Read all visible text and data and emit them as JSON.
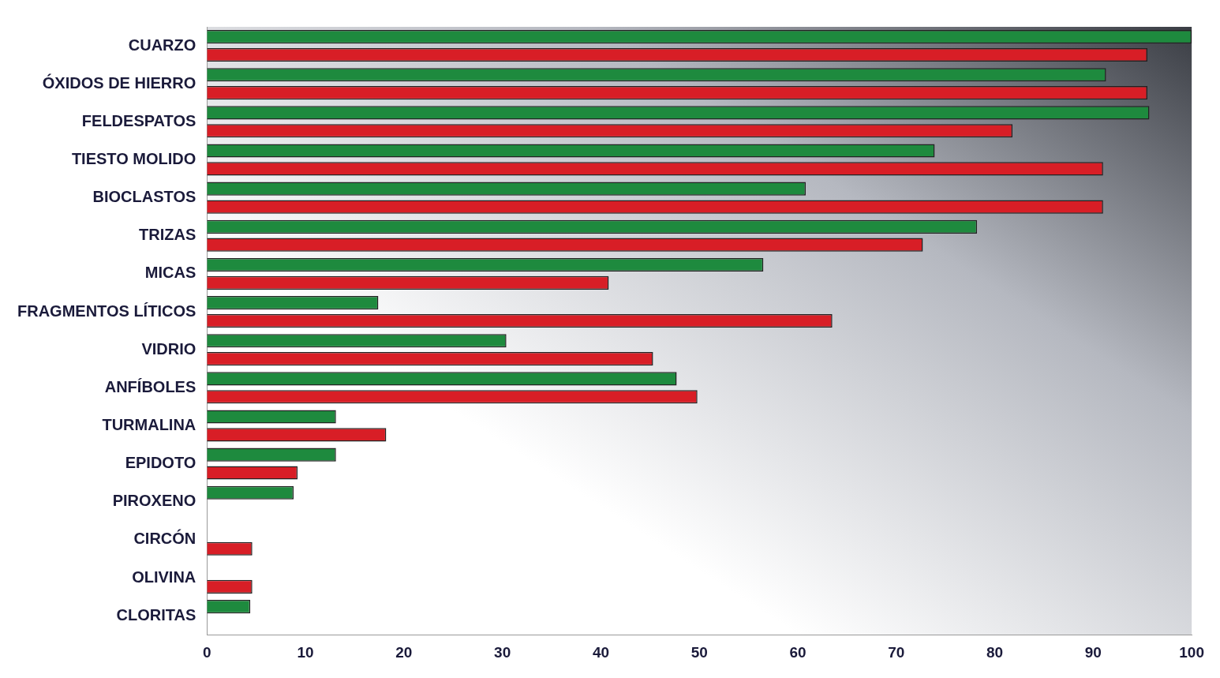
{
  "chart_data": {
    "type": "bar",
    "orientation": "horizontal",
    "categories": [
      "CUARZO",
      "ÓXIDOS DE HIERRO",
      "FELDESPATOS",
      "TIESTO MOLIDO",
      "BIOCLASTOS",
      "TRIZAS",
      "MICAS",
      "FRAGMENTOS LÍTICOS",
      "VIDRIO",
      "ANFÍBOLES",
      "TURMALINA",
      "EPIDOTO",
      "PIROXENO",
      "CIRCÓN",
      "OLIVINA",
      "CLORITAS"
    ],
    "series": [
      {
        "color": "#1e8a3e",
        "values": [
          100,
          91.3,
          95.7,
          73.9,
          60.8,
          78.2,
          56.5,
          17.4,
          30.4,
          47.7,
          13.1,
          13.1,
          8.8,
          null,
          null,
          4.4
        ]
      },
      {
        "color": "#d81e26",
        "values": [
          95.5,
          95.5,
          81.8,
          91,
          91,
          72.7,
          40.8,
          63.5,
          45.3,
          49.8,
          18.2,
          9.2,
          null,
          4.6,
          4.6,
          null
        ]
      }
    ],
    "xlim": [
      0,
      100
    ],
    "xticks": [
      0,
      10,
      20,
      30,
      40,
      50,
      60,
      70,
      80,
      90,
      100
    ],
    "grid": false,
    "legend": false
  }
}
